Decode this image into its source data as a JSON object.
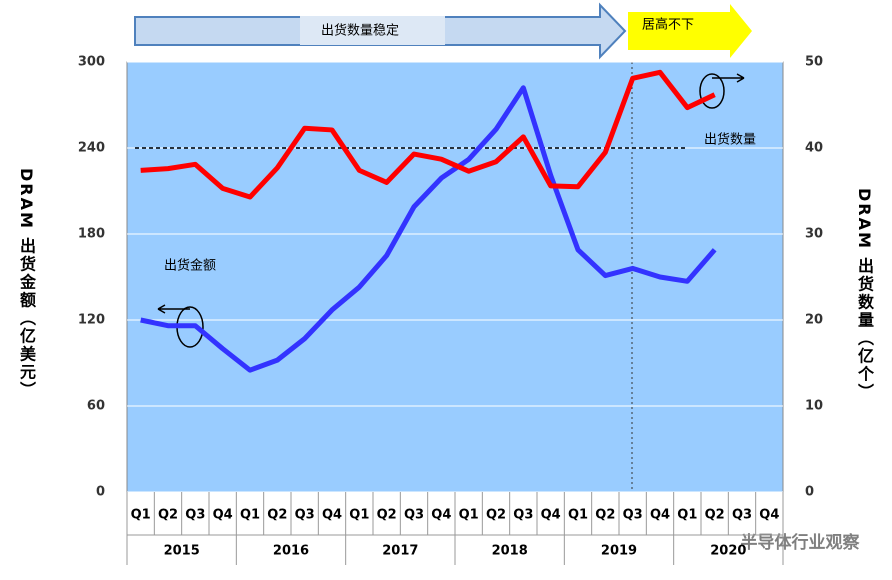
{
  "chart_data": {
    "type": "line",
    "banners": [
      "出货数量稳定",
      "居高不下"
    ],
    "annotations": [
      "出货金额",
      "出货数量"
    ],
    "y_label": "DRAM 出货金额（亿美元）",
    "y2_label": "DRAM 出货数量（亿个）",
    "watermark": "半导体行业观察",
    "categories": [
      "Q1",
      "Q2",
      "Q3",
      "Q4",
      "Q1",
      "Q2",
      "Q3",
      "Q4",
      "Q1",
      "Q2",
      "Q3",
      "Q4",
      "Q1",
      "Q2",
      "Q3",
      "Q4",
      "Q1",
      "Q2",
      "Q3",
      "Q4",
      "Q1",
      "Q2",
      "Q3",
      "Q4"
    ],
    "years": [
      "2015",
      "2016",
      "2017",
      "2018",
      "2019",
      "2020"
    ],
    "ylim": [
      0,
      300
    ],
    "yticks": [
      0,
      60,
      120,
      180,
      240,
      300
    ],
    "y2lim": [
      0,
      50
    ],
    "y2ticks": [
      0,
      10,
      20,
      30,
      40,
      50
    ],
    "reference_line": 240,
    "grid": true,
    "series": [
      {
        "name": "出货金额",
        "color": "#3333ff",
        "values": [
          120,
          116,
          116,
          100,
          85,
          92,
          107,
          127,
          143,
          165,
          199,
          219,
          232,
          253,
          282,
          221,
          169,
          151,
          156,
          150,
          147,
          169,
          null,
          null
        ]
      },
      {
        "name": "出货数量",
        "color": "#ff0000",
        "axis": "y2",
        "values": [
          37.4,
          37.6,
          38.1,
          35.3,
          34.3,
          37.7,
          42.3,
          42.1,
          37.4,
          36.0,
          39.3,
          38.7,
          37.3,
          38.4,
          41.3,
          35.6,
          35.5,
          39.5,
          48.1,
          48.8,
          44.7,
          46.2,
          null,
          null
        ]
      }
    ]
  }
}
